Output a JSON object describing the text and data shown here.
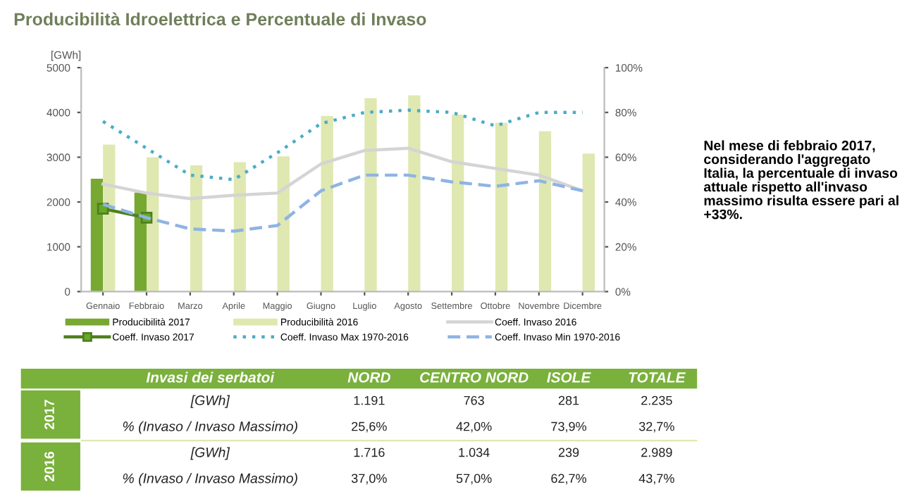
{
  "chart_data": [
    {
      "type": "bar",
      "title": "Producibilità Idroelettrica e Percentuale di Invaso",
      "ylabel": "[GWh]",
      "categories": [
        "Gennaio",
        "Febbraio",
        "Marzo",
        "Aprile",
        "Maggio",
        "Giugno",
        "Luglio",
        "Agosto",
        "Settembre",
        "Ottobre",
        "Novembre",
        "Dicembre"
      ],
      "series": [
        {
          "name": "Producibilità 2017",
          "type": "bar",
          "color": "#77a832",
          "values": [
            2520,
            2210,
            null,
            null,
            null,
            null,
            null,
            null,
            null,
            null,
            null,
            null
          ]
        },
        {
          "name": "Producibilità 2016",
          "type": "bar",
          "color": "#dfe8b0",
          "values": [
            3280,
            3000,
            2820,
            2890,
            3020,
            3920,
            4320,
            4380,
            3950,
            3770,
            3580,
            3080
          ]
        },
        {
          "name": "Coeff. Invaso 2016",
          "type": "line",
          "axis": "y2",
          "color": "#d4d4d4",
          "line_style": "solid",
          "marker": "none",
          "values": [
            48,
            44,
            41.5,
            43,
            44,
            57,
            63,
            64,
            58,
            55,
            52,
            45
          ]
        },
        {
          "name": "Coeff. Invaso 2017",
          "type": "line",
          "axis": "y2",
          "color": "#4f7f1f",
          "line_style": "solid",
          "marker": "square",
          "values": [
            37,
            33,
            null,
            null,
            null,
            null,
            null,
            null,
            null,
            null,
            null,
            null
          ]
        },
        {
          "name": "Coeff. Invaso Max 1970-2016",
          "type": "line",
          "axis": "y2",
          "color": "#4bacc6",
          "line_style": "dotted",
          "marker": "none",
          "values": [
            76,
            64,
            52,
            50,
            62,
            75,
            80,
            81,
            80,
            74,
            80,
            80
          ]
        },
        {
          "name": "Coeff. Invaso Min 1970-2016",
          "type": "line",
          "axis": "y2",
          "color": "#8eb4e3",
          "line_style": "dashed",
          "marker": "none",
          "values": [
            39,
            33,
            28,
            27,
            29.5,
            45,
            52,
            52,
            49,
            47,
            49.5,
            45
          ]
        }
      ],
      "ylim": [
        0,
        5000
      ],
      "yticks": [
        0,
        1000,
        2000,
        3000,
        4000,
        5000
      ],
      "y2lim": [
        0,
        100
      ],
      "y2ticks": [
        {
          "value": 0,
          "label": "0%"
        },
        {
          "value": 20,
          "label": "20%"
        },
        {
          "value": 40,
          "label": "40%"
        },
        {
          "value": 60,
          "label": "60%"
        },
        {
          "value": 80,
          "label": "80%"
        },
        {
          "value": 100,
          "label": "100%"
        }
      ],
      "grid": false,
      "legend": "bottom",
      "annotations": [
        "Nel mese di febbraio 2017, considerando l'aggregato Italia, la percentuale di invaso attuale rispetto all'invaso massimo risulta essere pari al +33%."
      ]
    },
    {
      "type": "other",
      "categories": [
        "Invasi dei serbatoi",
        "NORD",
        "CENTRO NORD",
        "ISOLE",
        "TOTALE"
      ],
      "y_categories": [
        "2017",
        "2016"
      ],
      "cell_labels": [
        [
          "[GWh]",
          "1.191",
          "763",
          "281",
          "2.235"
        ],
        [
          "% (Invaso / Invaso Massimo)",
          "25,6%",
          "42,0%",
          "73,9%",
          "32,7%"
        ],
        [
          "[GWh]",
          "1.716",
          "1.034",
          "239",
          "2.989"
        ],
        [
          "% (Invaso / Invaso Massimo)",
          "37,0%",
          "57,0%",
          "62,7%",
          "43,7%"
        ]
      ]
    }
  ]
}
